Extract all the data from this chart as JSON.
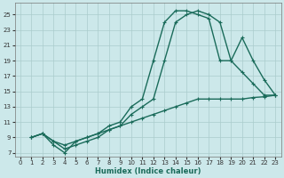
{
  "xlabel": "Humidex (Indice chaleur)",
  "bg_color": "#cce8ea",
  "grid_color": "#aacccc",
  "line_color": "#1a6b5a",
  "xlim": [
    -0.5,
    23.5
  ],
  "ylim": [
    6.5,
    26.5
  ],
  "xticks": [
    0,
    1,
    2,
    3,
    4,
    5,
    6,
    7,
    8,
    9,
    10,
    11,
    12,
    13,
    14,
    15,
    16,
    17,
    18,
    19,
    20,
    21,
    22,
    23
  ],
  "yticks": [
    7,
    9,
    11,
    13,
    15,
    17,
    19,
    21,
    23,
    25
  ],
  "line1_x": [
    1,
    2,
    3,
    4,
    5,
    6,
    7,
    8,
    9,
    10,
    11,
    12,
    13,
    14,
    15,
    16,
    17,
    18,
    19,
    20,
    21,
    22,
    23
  ],
  "line1_y": [
    9,
    9.5,
    8.5,
    7.5,
    8.0,
    8.5,
    9.0,
    10.0,
    10.5,
    12.0,
    13.0,
    14.0,
    19.0,
    24.0,
    25.0,
    25.5,
    25.0,
    24.0,
    19.0,
    22.0,
    19.0,
    16.5,
    14.5
  ],
  "line2_x": [
    1,
    2,
    3,
    4,
    5,
    6,
    7,
    8,
    9,
    10,
    11,
    12,
    13,
    14,
    15,
    16,
    17,
    18,
    19,
    20,
    21,
    22,
    23
  ],
  "line2_y": [
    9,
    9.5,
    8.0,
    7.0,
    8.5,
    9.0,
    9.5,
    10.5,
    11.0,
    13.0,
    14.0,
    19.0,
    24.0,
    25.5,
    25.5,
    25.0,
    24.5,
    19.0,
    19.0,
    17.5,
    16.0,
    14.5,
    14.5
  ],
  "line3_x": [
    1,
    2,
    3,
    4,
    5,
    6,
    7,
    8,
    9,
    10,
    11,
    12,
    13,
    14,
    15,
    16,
    17,
    18,
    19,
    20,
    21,
    22,
    23
  ],
  "line3_y": [
    9,
    9.5,
    8.5,
    8.0,
    8.5,
    9.0,
    9.5,
    10.0,
    10.5,
    11.0,
    11.5,
    12.0,
    12.5,
    13.0,
    13.5,
    14.0,
    14.0,
    14.0,
    14.0,
    14.0,
    14.2,
    14.3,
    14.5
  ],
  "marker_size": 3.0,
  "linewidth": 1.0
}
